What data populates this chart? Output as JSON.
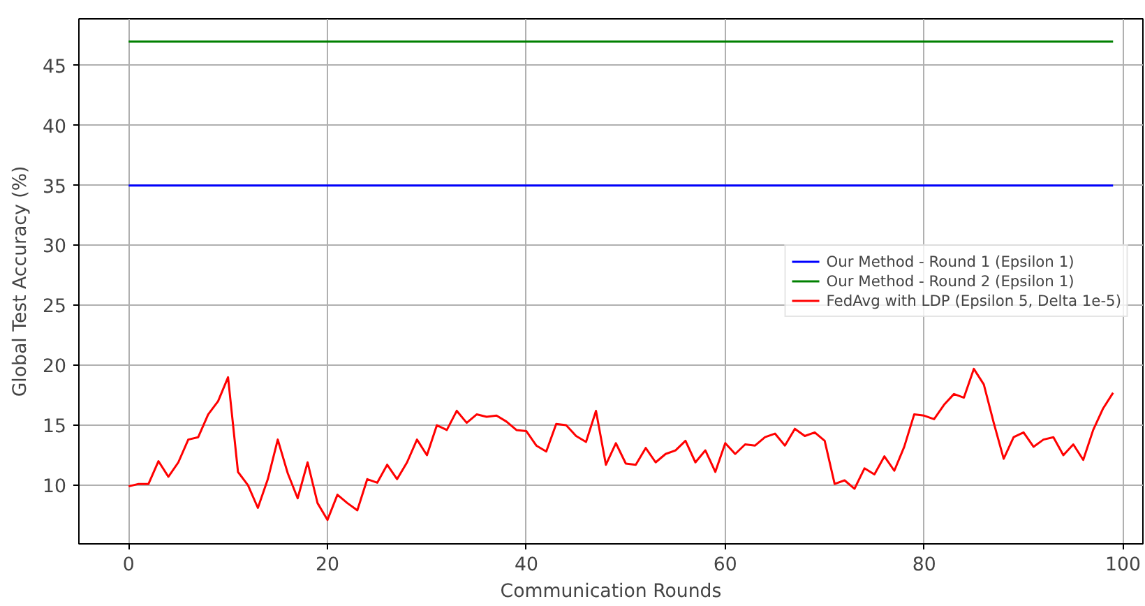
{
  "chart_data": {
    "type": "line",
    "xlabel": "Communication Rounds",
    "ylabel": "Global Test Accuracy (%)",
    "x": [
      0,
      1,
      2,
      3,
      4,
      5,
      6,
      7,
      8,
      9,
      10,
      11,
      12,
      13,
      14,
      15,
      16,
      17,
      18,
      19,
      20,
      21,
      22,
      23,
      24,
      25,
      26,
      27,
      28,
      29,
      30,
      31,
      32,
      33,
      34,
      35,
      36,
      37,
      38,
      39,
      40,
      41,
      42,
      43,
      44,
      45,
      46,
      47,
      48,
      49,
      50,
      51,
      52,
      53,
      54,
      55,
      56,
      57,
      58,
      59,
      60,
      61,
      62,
      63,
      64,
      65,
      66,
      67,
      68,
      69,
      70,
      71,
      72,
      73,
      74,
      75,
      76,
      77,
      78,
      79,
      80,
      81,
      82,
      83,
      84,
      85,
      86,
      87,
      88,
      89,
      90,
      91,
      92,
      93,
      94,
      95,
      96,
      97,
      98,
      99
    ],
    "series": [
      {
        "name": "Our Method - Round 1 (Epsilon 1)",
        "color": "#0000ff",
        "values": [
          35,
          35,
          35,
          35,
          35,
          35,
          35,
          35,
          35,
          35,
          35,
          35,
          35,
          35,
          35,
          35,
          35,
          35,
          35,
          35,
          35,
          35,
          35,
          35,
          35,
          35,
          35,
          35,
          35,
          35,
          35,
          35,
          35,
          35,
          35,
          35,
          35,
          35,
          35,
          35,
          35,
          35,
          35,
          35,
          35,
          35,
          35,
          35,
          35,
          35,
          35,
          35,
          35,
          35,
          35,
          35,
          35,
          35,
          35,
          35,
          35,
          35,
          35,
          35,
          35,
          35,
          35,
          35,
          35,
          35,
          35,
          35,
          35,
          35,
          35,
          35,
          35,
          35,
          35,
          35,
          35,
          35,
          35,
          35,
          35,
          35,
          35,
          35,
          35,
          35,
          35,
          35,
          35,
          35,
          35,
          35,
          35,
          35,
          35,
          35
        ]
      },
      {
        "name": "Our Method - Round 2 (Epsilon 1)",
        "color": "#008000",
        "values": [
          47,
          47,
          47,
          47,
          47,
          47,
          47,
          47,
          47,
          47,
          47,
          47,
          47,
          47,
          47,
          47,
          47,
          47,
          47,
          47,
          47,
          47,
          47,
          47,
          47,
          47,
          47,
          47,
          47,
          47,
          47,
          47,
          47,
          47,
          47,
          47,
          47,
          47,
          47,
          47,
          47,
          47,
          47,
          47,
          47,
          47,
          47,
          47,
          47,
          47,
          47,
          47,
          47,
          47,
          47,
          47,
          47,
          47,
          47,
          47,
          47,
          47,
          47,
          47,
          47,
          47,
          47,
          47,
          47,
          47,
          47,
          47,
          47,
          47,
          47,
          47,
          47,
          47,
          47,
          47,
          47,
          47,
          47,
          47,
          47,
          47,
          47,
          47,
          47,
          47,
          47,
          47,
          47,
          47,
          47,
          47,
          47,
          47,
          47,
          47
        ]
      },
      {
        "name": "FedAvg with LDP (Epsilon 5, Delta 1e-5)",
        "color": "#ff0000",
        "values": [
          9.9,
          10.1,
          10.1,
          12.0,
          10.7,
          11.9,
          13.8,
          14.0,
          15.9,
          17.0,
          19.0,
          11.1,
          10.0,
          8.1,
          10.5,
          13.8,
          11.0,
          8.9,
          11.9,
          8.5,
          7.1,
          9.2,
          8.5,
          7.9,
          10.5,
          10.2,
          11.7,
          10.5,
          11.9,
          13.8,
          12.5,
          15.0,
          14.6,
          16.2,
          15.2,
          15.9,
          15.7,
          15.8,
          15.3,
          14.6,
          14.5,
          13.3,
          12.8,
          15.1,
          15.0,
          14.1,
          13.6,
          16.2,
          11.7,
          13.5,
          11.8,
          11.7,
          13.1,
          11.9,
          12.6,
          12.9,
          13.7,
          11.9,
          12.9,
          11.1,
          13.5,
          12.6,
          13.4,
          13.3,
          14.0,
          14.3,
          13.3,
          14.7,
          14.1,
          14.4,
          13.7,
          10.1,
          10.4,
          9.7,
          11.4,
          10.9,
          12.4,
          11.2,
          13.2,
          15.9,
          15.8,
          15.5,
          16.7,
          17.6,
          17.3,
          19.7,
          18.4,
          15.2,
          12.2,
          14.0,
          14.4,
          13.2,
          13.8,
          14.0,
          12.5,
          13.4,
          12.1,
          14.6,
          16.4,
          17.7
        ]
      }
    ],
    "xlim": [
      -5,
      102
    ],
    "ylim": [
      5.1,
      48.9
    ],
    "xticks": [
      0,
      20,
      40,
      60,
      80,
      100
    ],
    "yticks": [
      10,
      15,
      20,
      25,
      30,
      35,
      40,
      45
    ],
    "grid": true,
    "legend": "center right"
  }
}
